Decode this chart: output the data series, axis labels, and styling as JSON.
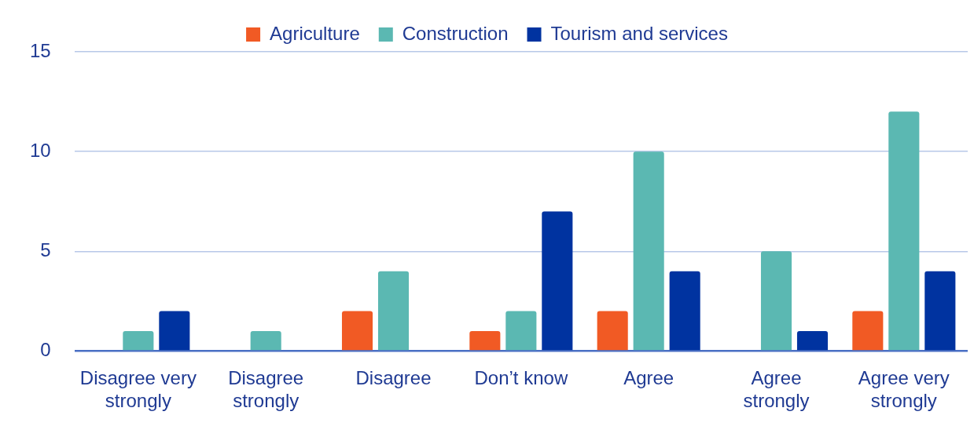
{
  "chart_data": {
    "type": "bar",
    "categories": [
      "Disagree very strongly",
      "Disagree strongly",
      "Disagree",
      "Don’t know",
      "Agree",
      "Agree strongly",
      "Agree very strongly"
    ],
    "series": [
      {
        "name": "Agriculture",
        "color": "#f15a24",
        "values": [
          0,
          0,
          2,
          1,
          2,
          0,
          2
        ]
      },
      {
        "name": "Construction",
        "color": "#5bb8b2",
        "values": [
          1,
          1,
          4,
          2,
          10,
          5,
          12
        ]
      },
      {
        "name": "Tourism and services",
        "color": "#0033a0",
        "values": [
          2,
          0,
          0,
          7,
          4,
          1,
          4
        ]
      }
    ],
    "ylim": [
      0,
      15
    ],
    "yticks": [
      0,
      5,
      10,
      15
    ],
    "grid": "y",
    "legend": "top"
  }
}
